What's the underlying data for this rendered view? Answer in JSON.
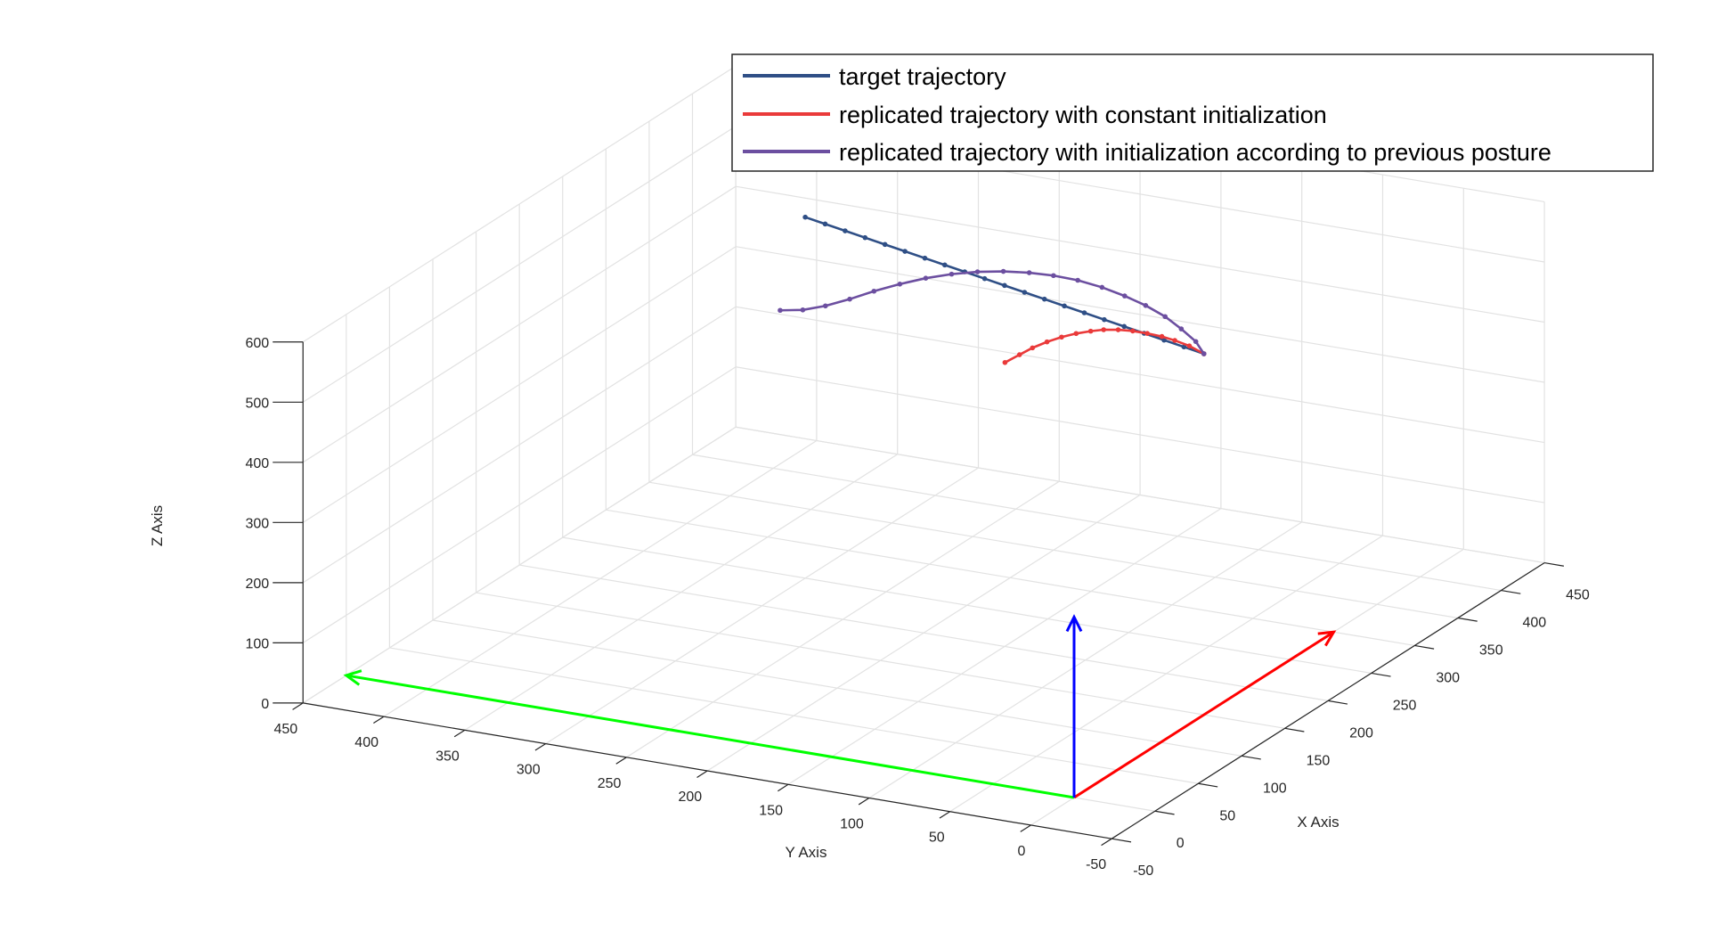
{
  "chart_data": {
    "type": "line3d",
    "xlabel": "X Axis",
    "ylabel": "Y Axis",
    "zlabel": "Z Axis",
    "xlim": [
      -50,
      450
    ],
    "ylim": [
      -50,
      450
    ],
    "zlim": [
      0,
      600
    ],
    "xticks": [
      "-50",
      "0",
      "50",
      "100",
      "150",
      "200",
      "250",
      "300",
      "350",
      "400",
      "450"
    ],
    "yticks": [
      "-50",
      "0",
      "50",
      "100",
      "150",
      "200",
      "250",
      "300",
      "350",
      "400",
      "450"
    ],
    "zticks": [
      "0",
      "100",
      "200",
      "300",
      "400",
      "500",
      "600"
    ],
    "grid": true,
    "legend_position": "top-right",
    "legend": [
      {
        "label": "target trajectory",
        "color": "#2f4f86"
      },
      {
        "label": "replicated trajectory with constant initialization",
        "color": "#ea3a3a"
      },
      {
        "label": "replicated trajectory with initialization according to previous posture",
        "color": "#6c4fa0"
      }
    ],
    "series": [
      {
        "name": "target trajectory",
        "color": "#2f4f86",
        "points": [
          [
            150,
            0,
            600
          ],
          [
            155,
            15,
            600
          ],
          [
            160,
            30,
            600
          ],
          [
            165,
            45,
            600
          ],
          [
            170,
            60,
            600
          ],
          [
            175,
            75,
            600
          ],
          [
            180,
            90,
            600
          ],
          [
            185,
            105,
            600
          ],
          [
            190,
            120,
            600
          ],
          [
            195,
            135,
            600
          ],
          [
            200,
            150,
            600
          ],
          [
            205,
            165,
            600
          ],
          [
            210,
            180,
            600
          ],
          [
            215,
            195,
            600
          ],
          [
            220,
            210,
            600
          ],
          [
            225,
            225,
            600
          ],
          [
            230,
            240,
            600
          ],
          [
            235,
            255,
            600
          ],
          [
            240,
            270,
            600
          ],
          [
            245,
            285,
            600
          ],
          [
            250,
            300,
            600
          ]
        ]
      },
      {
        "name": "replicated trajectory with constant initialization",
        "color": "#ea3a3a",
        "points": [
          [
            150,
            0,
            600
          ],
          [
            150,
            9,
            609
          ],
          [
            150,
            18,
            614
          ],
          [
            150,
            26,
            617
          ],
          [
            150,
            35,
            618
          ],
          [
            150,
            44,
            618
          ],
          [
            150,
            53,
            616
          ],
          [
            150,
            62,
            612
          ],
          [
            150,
            70,
            606
          ],
          [
            150,
            79,
            598
          ],
          [
            150,
            88,
            588
          ],
          [
            150,
            97,
            576
          ],
          [
            150,
            106,
            562
          ],
          [
            150,
            114,
            547
          ],
          [
            150,
            123,
            530
          ]
        ]
      },
      {
        "name": "replicated trajectory with initialization according to previous posture",
        "color": "#6c4fa0",
        "points": [
          [
            150,
            0,
            600
          ],
          [
            150,
            5,
            618
          ],
          [
            150,
            14,
            635
          ],
          [
            150,
            24,
            651
          ],
          [
            150,
            36,
            664
          ],
          [
            150,
            49,
            674
          ],
          [
            150,
            63,
            682
          ],
          [
            150,
            78,
            687
          ],
          [
            150,
            93,
            688
          ],
          [
            150,
            108,
            686
          ],
          [
            150,
            124,
            681
          ],
          [
            150,
            140,
            673
          ],
          [
            150,
            156,
            662
          ],
          [
            150,
            172,
            648
          ],
          [
            150,
            188,
            631
          ],
          [
            150,
            204,
            612
          ],
          [
            150,
            219,
            592
          ],
          [
            150,
            234,
            574
          ],
          [
            150,
            248,
            561
          ],
          [
            150,
            262,
            554
          ]
        ]
      }
    ],
    "coordinate_axes": [
      {
        "name": "x-axis",
        "color": "#ff0000",
        "from": [
          0,
          0,
          0
        ],
        "to": [
          300,
          0,
          0
        ]
      },
      {
        "name": "y-axis",
        "color": "#00ff00",
        "from": [
          0,
          0,
          0
        ],
        "to": [
          0,
          450,
          0
        ]
      },
      {
        "name": "z-axis",
        "color": "#0000ff",
        "from": [
          0,
          0,
          0
        ],
        "to": [
          0,
          0,
          300
        ]
      }
    ]
  }
}
